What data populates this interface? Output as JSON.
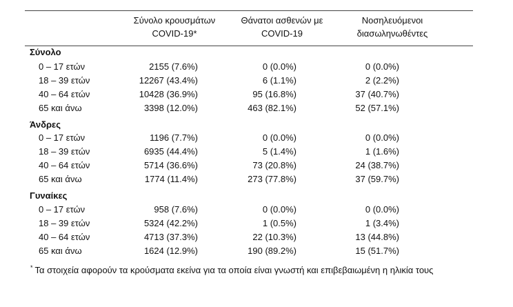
{
  "headers": {
    "cases": [
      "Σύνολο κρουσμάτων",
      "COVID-19*"
    ],
    "deaths": [
      "Θάνατοι ασθενών με",
      "COVID-19"
    ],
    "intubated": [
      "Νοσηλευόμενοι",
      "διασωληνωθέντες"
    ]
  },
  "groups": [
    {
      "title": "Σύνολο",
      "rows": [
        {
          "age": "0 – 17 ετών",
          "cases": "2155 (7.6%)",
          "deaths": "0 (0.0%)",
          "intubated": "0 (0.0%)"
        },
        {
          "age": "18 – 39 ετών",
          "cases": "12267 (43.4%)",
          "deaths": "6 (1.1%)",
          "intubated": "2 (2.2%)"
        },
        {
          "age": "40 – 64 ετών",
          "cases": "10428 (36.9%)",
          "deaths": "95 (16.8%)",
          "intubated": "37 (40.7%)"
        },
        {
          "age": "65 και άνω",
          "cases": "3398 (12.0%)",
          "deaths": "463 (82.1%)",
          "intubated": "52 (57.1%)"
        }
      ]
    },
    {
      "title": "Άνδρες",
      "rows": [
        {
          "age": "0 – 17 ετών",
          "cases": "1196 (7.7%)",
          "deaths": "0 (0.0%)",
          "intubated": "0 (0.0%)"
        },
        {
          "age": "18 – 39 ετών",
          "cases": "6935 (44.4%)",
          "deaths": "5 (1.4%)",
          "intubated": "1 (1.6%)"
        },
        {
          "age": "40 – 64 ετών",
          "cases": "5714 (36.6%)",
          "deaths": "73 (20.8%)",
          "intubated": "24 (38.7%)"
        },
        {
          "age": "65 και άνω",
          "cases": "1774 (11.4%)",
          "deaths": "273 (77.8%)",
          "intubated": "37 (59.7%)"
        }
      ]
    },
    {
      "title": "Γυναίκες",
      "rows": [
        {
          "age": "0 – 17 ετών",
          "cases": "958 (7.6%)",
          "deaths": "0 (0.0%)",
          "intubated": "0 (0.0%)"
        },
        {
          "age": "18 – 39 ετών",
          "cases": "5324 (42.2%)",
          "deaths": "1 (0.5%)",
          "intubated": "1 (3.4%)"
        },
        {
          "age": "40 – 64 ετών",
          "cases": "4713 (37.3%)",
          "deaths": "22 (10.3%)",
          "intubated": "13 (44.8%)"
        },
        {
          "age": "65 και άνω",
          "cases": "1624 (12.9%)",
          "deaths": "190 (89.2%)",
          "intubated": "15 (51.7%)"
        }
      ]
    }
  ],
  "footnote": {
    "marker": "*",
    "text": "Τα στοιχεία αφορούν τα κρούσματα εκείνα για τα οποία είναι γνωστή και επιβεβαιωμένη η ηλικία τους"
  }
}
